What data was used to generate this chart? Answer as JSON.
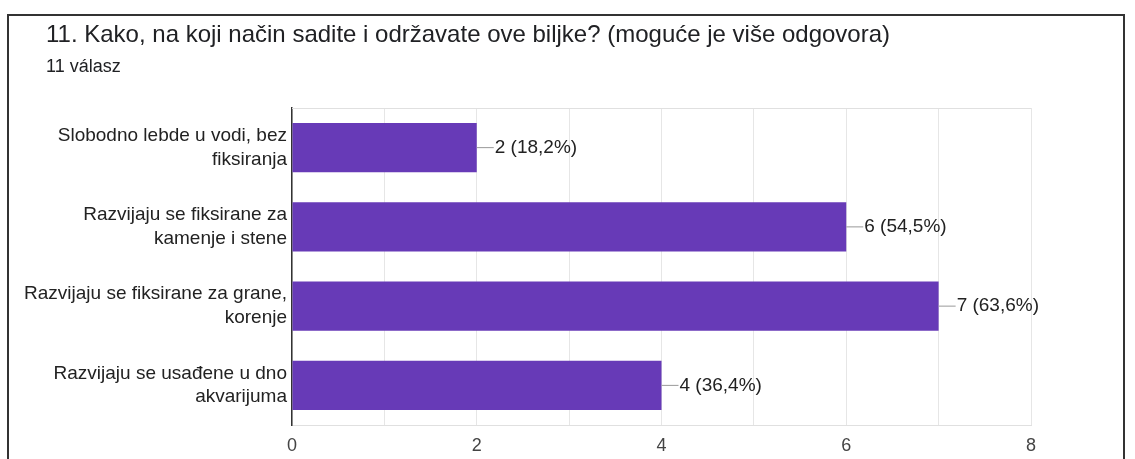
{
  "chart_data": {
    "type": "bar",
    "orientation": "horizontal",
    "title": "11. Kako, na koji način sadite i održavate ove biljke? (moguće je više odgovora)",
    "subtitle": "11 válasz",
    "categories": [
      "Slobodno lebde u vodi, bez fiksiranja",
      "Razvijaju se fiksirane za kamenje i stene",
      "Razvijaju se fiksirane za grane, korenje",
      "Razvijaju se usađene u dno akvarijuma"
    ],
    "values": [
      2,
      6,
      7,
      4
    ],
    "color": "#673ab7",
    "value_labels": [
      "2 (18,2%)",
      "6 (54,5%)",
      "7 (63,6%)",
      "4 (36,4%)"
    ],
    "xlim": [
      0,
      8
    ],
    "xticks": [
      0,
      {
        "value": 1,
        "label": null
      },
      2,
      {
        "value": 3,
        "label": null
      },
      4,
      {
        "value": 5,
        "label": null
      },
      6,
      {
        "value": 7,
        "label": null
      },
      8
    ],
    "grid": "x"
  }
}
